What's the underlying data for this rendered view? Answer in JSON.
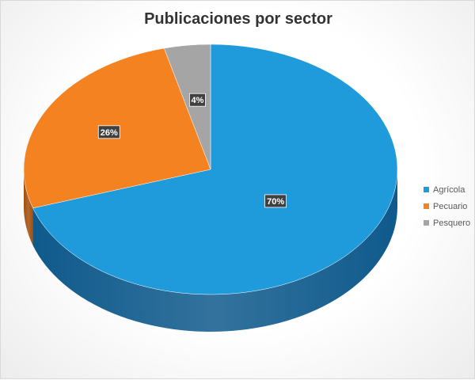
{
  "chart_data": {
    "type": "pie",
    "title": "Publicaciones por sector",
    "categories": [
      "Agrícola",
      "Pecuario",
      "Pesquero"
    ],
    "values": [
      70,
      26,
      4
    ],
    "data_labels": [
      "70%",
      "26%",
      "4%"
    ],
    "colors": [
      "#1f9bdc",
      "#f58220",
      "#a5a5a5"
    ],
    "side_colors": [
      "#0f5a8c",
      "#a24f0e",
      "#6e6e6e"
    ],
    "style": "3d",
    "legend_position": "right"
  }
}
